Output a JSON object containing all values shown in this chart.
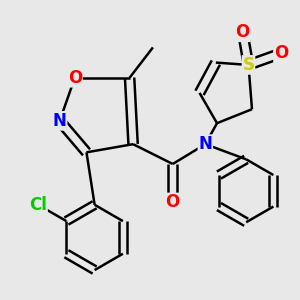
{
  "bg_color": "#e8e8e8",
  "atom_colors": {
    "C": "#000000",
    "N": "#0000ff",
    "O": "#ff0000",
    "S": "#cccc00",
    "Cl": "#00cc00",
    "H": "#000000"
  },
  "bond_color": "#000000",
  "line_width": 1.8,
  "font_size": 12,
  "figsize": [
    3.0,
    3.0
  ],
  "dpi": 100
}
